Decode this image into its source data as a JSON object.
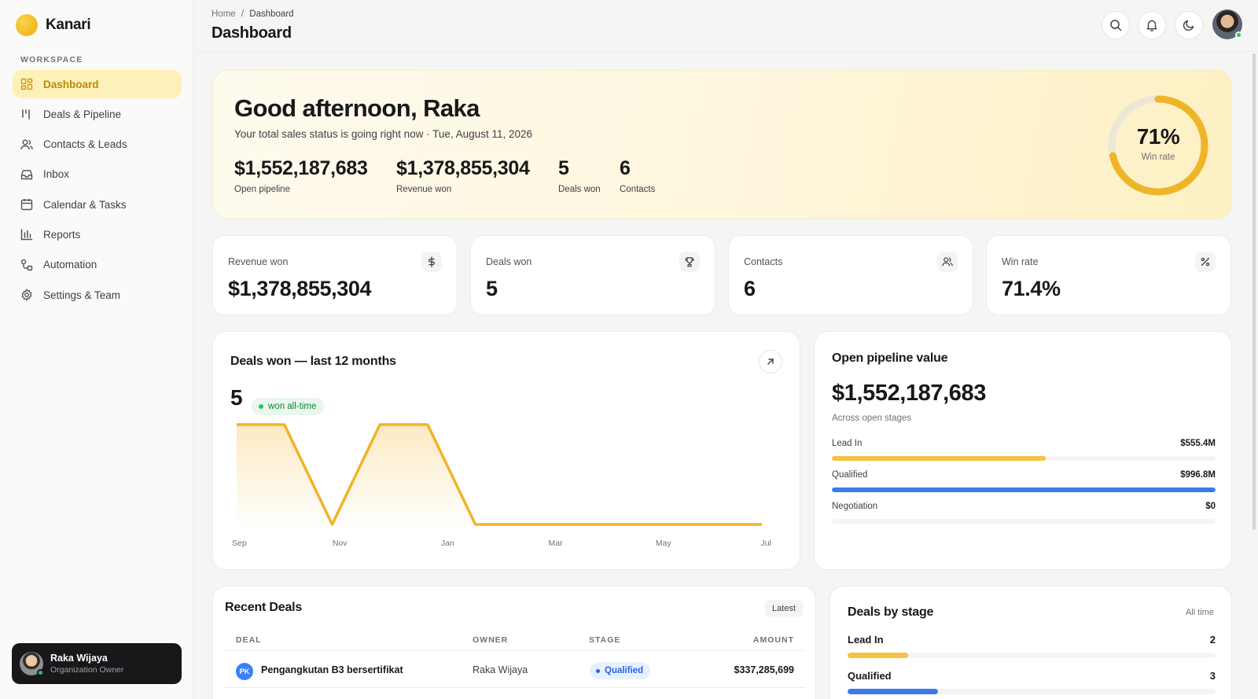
{
  "brand": {
    "name": "Kanari"
  },
  "sidebar": {
    "section_label": "WORKSPACE",
    "items": [
      {
        "label": "Dashboard",
        "icon": "grid-icon",
        "active": true
      },
      {
        "label": "Deals & Pipeline",
        "icon": "pipeline-icon"
      },
      {
        "label": "Contacts & Leads",
        "icon": "users-icon"
      },
      {
        "label": "Inbox",
        "icon": "inbox-icon"
      },
      {
        "label": "Calendar & Tasks",
        "icon": "calendar-icon"
      },
      {
        "label": "Reports",
        "icon": "bar-chart-icon"
      },
      {
        "label": "Automation",
        "icon": "automation-icon"
      },
      {
        "label": "Settings & Team",
        "icon": "gear-icon"
      }
    ],
    "user": {
      "name": "Raka Wijaya",
      "role": "Organization Owner"
    }
  },
  "header": {
    "breadcrumb": {
      "home": "Home",
      "separator": "/",
      "current": "Dashboard"
    },
    "title": "Dashboard"
  },
  "hero": {
    "greeting": "Good afternoon, Raka",
    "subtitle": "Your total sales status is going right now · Tue, August 11, 2026",
    "stats": [
      {
        "value": "$1,552,187,683",
        "label": "Open pipeline"
      },
      {
        "value": "$1,378,855,304",
        "label": "Revenue won"
      },
      {
        "value": "5",
        "label": "Deals won"
      },
      {
        "value": "6",
        "label": "Contacts"
      }
    ],
    "win_rate": {
      "value": "71%",
      "label": "Win rate",
      "fraction": 0.714
    }
  },
  "kpis": [
    {
      "label": "Revenue won",
      "value": "$1,378,855,304",
      "icon": "dollar-icon"
    },
    {
      "label": "Deals won",
      "value": "5",
      "icon": "trophy-icon"
    },
    {
      "label": "Contacts",
      "value": "6",
      "icon": "users-icon"
    },
    {
      "label": "Win rate",
      "value": "71.4%",
      "icon": "percent-icon"
    }
  ],
  "deals_chart": {
    "title": "Deals won — last 12 months",
    "total": "5",
    "badge": "won all-time",
    "tick_labels": [
      "Sep",
      "Nov",
      "Jan",
      "Mar",
      "May",
      "Jul"
    ]
  },
  "chart_data": {
    "type": "area",
    "title": "Deals won — last 12 months",
    "x": [
      "Sep",
      "Oct",
      "Nov",
      "Dec",
      "Jan",
      "Feb",
      "Mar",
      "Apr",
      "May",
      "Jun",
      "Jul",
      "Aug"
    ],
    "values": [
      1,
      1,
      0,
      1,
      1,
      0,
      0,
      0,
      0,
      0,
      0,
      0
    ],
    "xlabel": "",
    "ylabel": "",
    "ylim": [
      0,
      1
    ],
    "grid": false,
    "color": "#f0b429"
  },
  "pipeline": {
    "title": "Open pipeline value",
    "value": "$1,552,187,683",
    "subtitle": "Across open stages",
    "stages": [
      {
        "name": "Lead In",
        "amount": "$555.4M",
        "fraction": 0.557,
        "color": "#f5c242"
      },
      {
        "name": "Qualified",
        "amount": "$996.8M",
        "fraction": 1.0,
        "color": "#3b7be8"
      },
      {
        "name": "Negotiation",
        "amount": "$0",
        "fraction": 0,
        "color": "#a1a1aa"
      }
    ]
  },
  "recent_deals": {
    "title": "Recent Deals",
    "filter": "Latest",
    "columns": [
      "DEAL",
      "OWNER",
      "STAGE",
      "AMOUNT"
    ],
    "rows": [
      {
        "initials": "PK",
        "deal": "Pengangkutan B3 bersertifikat",
        "owner": "Raka Wijaya",
        "stage": "Qualified",
        "amount": "$337,285,699"
      }
    ]
  },
  "deals_by_stage": {
    "title": "Deals by stage",
    "range": "All time",
    "rows": [
      {
        "name": "Lead In",
        "count": "2",
        "fraction": 0.165,
        "color": "#f5c242"
      },
      {
        "name": "Qualified",
        "count": "3",
        "fraction": 0.245,
        "color": "#3b7be8"
      }
    ]
  }
}
